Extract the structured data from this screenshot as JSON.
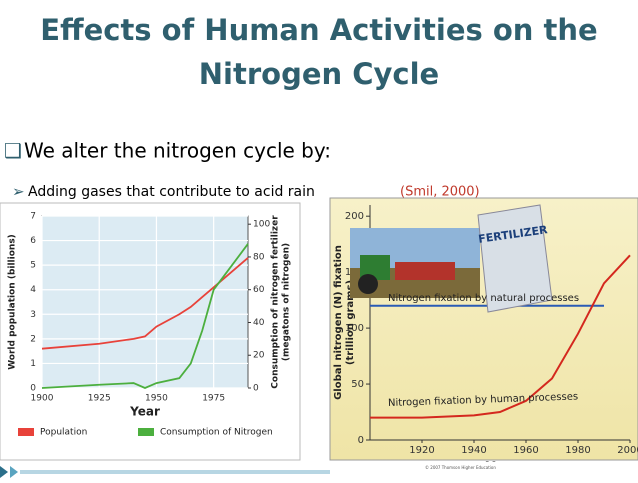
{
  "title": [
    "Effects of Human Activities on the",
    "Nitrogen Cycle"
  ],
  "bullet": "We alter the nitrogen cycle by:",
  "sub_bullet": {
    "text": "Adding gases that contribute to acid rain",
    "citation": "(Smil, 2000)"
  },
  "image_label": "FERTILIZER",
  "chart_data": [
    {
      "type": "line",
      "x": [
        1900,
        1925,
        1940,
        1945,
        1950,
        1960,
        1965,
        1970,
        1975,
        1990
      ],
      "series": [
        {
          "name": "Population",
          "color": "#e8423a",
          "values": [
            1.6,
            1.8,
            2.0,
            2.1,
            2.5,
            3.0,
            3.3,
            3.7,
            4.1,
            5.3
          ]
        },
        {
          "name": "Consumption of Nitrogen",
          "color": "#4caf3e",
          "axis": "y2",
          "values": [
            0,
            2,
            3,
            0,
            3,
            6,
            15,
            35,
            60,
            88
          ]
        }
      ],
      "xlim": [
        1900,
        1990
      ],
      "xticks": [
        1900,
        1925,
        1950,
        1975
      ],
      "ylim": [
        0,
        7
      ],
      "yticks": [
        0,
        1,
        2,
        3,
        4,
        5,
        6,
        7
      ],
      "y2lim": [
        0,
        105
      ],
      "y2ticks": [
        0,
        20,
        40,
        60,
        80,
        100
      ],
      "ylabel": [
        "World population (billions)"
      ],
      "y2label": [
        "Consumption of nitrogen fertilizer",
        "(megatons of nitrogen)"
      ],
      "xlabel": "Year",
      "grid": true
    },
    {
      "type": "line",
      "x": [
        1900,
        1920,
        1940,
        1950,
        1960,
        1970,
        1980,
        1990,
        2000
      ],
      "series": [
        {
          "name": "Nitrogen fixation by natural processes",
          "color": "#2a5bb5",
          "values": [
            120,
            120,
            120,
            120,
            120,
            120,
            120,
            120,
            null
          ]
        },
        {
          "name": "Nitrogen fixation by human processes",
          "color": "#d4281e",
          "values": [
            20,
            20,
            22,
            25,
            35,
            55,
            95,
            140,
            165
          ]
        }
      ],
      "xlim": [
        1900,
        2000
      ],
      "xticks": [
        1920,
        1940,
        1960,
        1980,
        2000
      ],
      "ylim": [
        0,
        210
      ],
      "yticks": [
        0,
        50,
        100,
        150,
        200
      ],
      "ylabel": [
        "Global nitrogen (N) fixation",
        "(trillion grams)"
      ],
      "xlabel": "Year",
      "grid": false,
      "credit": "© 2007 Thomson Higher Education"
    }
  ]
}
